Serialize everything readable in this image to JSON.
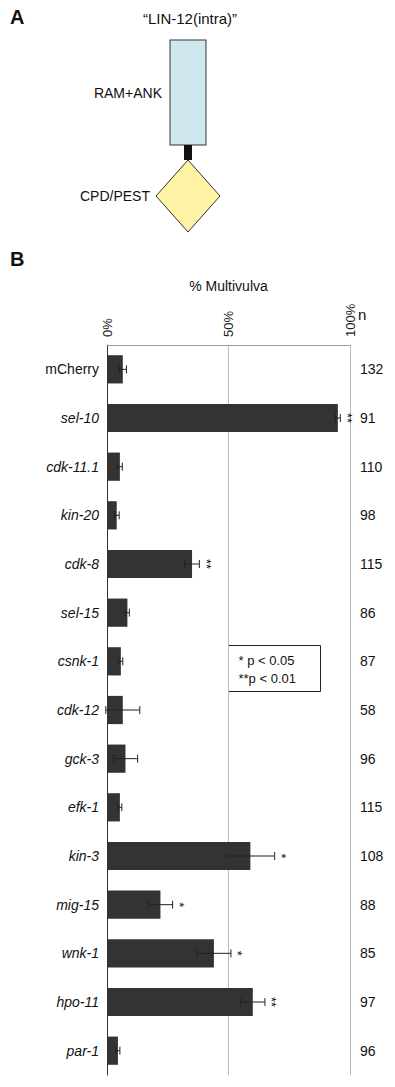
{
  "panel_a": {
    "letter": "A",
    "title": "“LIN-12(intra)”",
    "box_label": "RAM+ANK",
    "diamond_label": "CPD/PEST"
  },
  "chart_data": {
    "panel_letter": "B",
    "type": "bar",
    "orientation": "horizontal",
    "x_label": "% Multivulva",
    "categories": [
      "mCherry",
      "sel-10",
      "cdk-11.1",
      "kin-20",
      "cdk-8",
      "sel-15",
      "csnk-1",
      "cdk-12",
      "gck-3",
      "efk-1",
      "kin-3",
      "mig-15",
      "wnk-1",
      "hpo-11",
      "par-1"
    ],
    "values": [
      6.5,
      95,
      5.3,
      4,
      35,
      8.4,
      5.7,
      6.5,
      7.6,
      5.3,
      59,
      22,
      44,
      60,
      4.5
    ],
    "errors": [
      1.5,
      1,
      1,
      1,
      3,
      0.8,
      0.8,
      7,
      5,
      0.8,
      10,
      5,
      7,
      5,
      0.8
    ],
    "significance": [
      null,
      "**",
      null,
      null,
      "**",
      null,
      null,
      null,
      null,
      null,
      "*",
      "*",
      "*",
      "**",
      null
    ],
    "n_label": "n",
    "n": [
      132,
      91,
      110,
      98,
      115,
      86,
      87,
      58,
      96,
      115,
      108,
      88,
      85,
      97,
      96
    ],
    "significance_key": [
      "* p < 0.05",
      "**p < 0.01"
    ],
    "color": "#333333",
    "xlim": [
      0,
      100
    ],
    "xticks": [
      {
        "value": 0,
        "label": "0%"
      },
      {
        "value": 50,
        "label": "50%"
      },
      {
        "value": 100,
        "label": "100%"
      }
    ],
    "grid": true
  }
}
